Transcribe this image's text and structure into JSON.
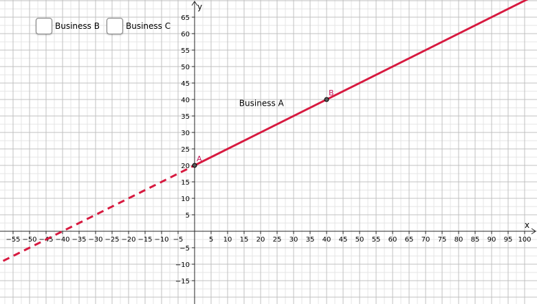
{
  "checkboxes": [
    {
      "label": "Business B",
      "checked": false
    },
    {
      "label": "Business C",
      "checked": false
    }
  ],
  "chart_data": {
    "type": "line",
    "xlabel": "x",
    "ylabel": "y",
    "xlim": [
      -58,
      102
    ],
    "ylim": [
      -21,
      70
    ],
    "x_step": 5,
    "y_step": 5,
    "x_ticks": [
      -55,
      -50,
      -45,
      -40,
      -35,
      -30,
      -25,
      -20,
      -15,
      -10,
      -5,
      5,
      10,
      15,
      20,
      25,
      30,
      35,
      40,
      45,
      50,
      55,
      60,
      65,
      70,
      75,
      80,
      85,
      90,
      95,
      100
    ],
    "y_ticks": [
      -15,
      -10,
      -5,
      5,
      10,
      15,
      20,
      25,
      30,
      35,
      40,
      45,
      50,
      55,
      60,
      65
    ],
    "grid": true,
    "series": [
      {
        "name": "Business A",
        "slope": 0.5,
        "intercept": 20,
        "color": "#d7193f",
        "solid_from_x": 0,
        "dashed_to_x": 0
      }
    ],
    "points": [
      {
        "label": "A",
        "x": 0,
        "y": 20
      },
      {
        "label": "B",
        "x": 40,
        "y": 40
      }
    ],
    "line_label": {
      "text": "Business A",
      "x": 13.5,
      "y": 38
    }
  }
}
